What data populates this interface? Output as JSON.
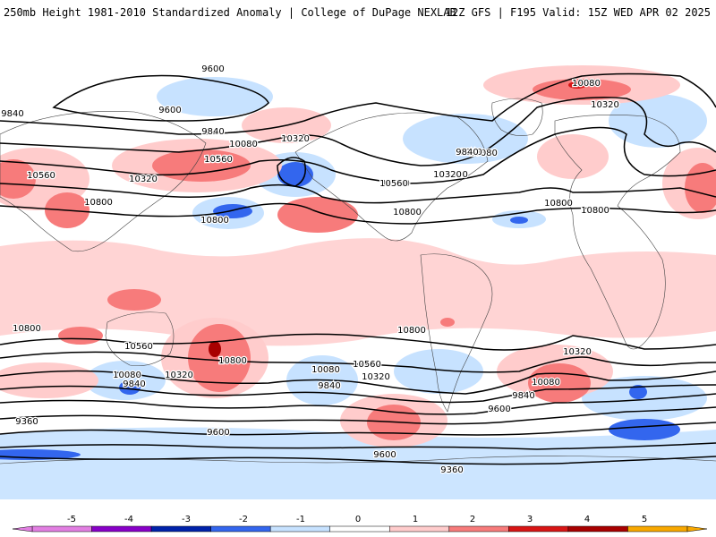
{
  "header": {
    "title_left": "250mb Height 1981-2010 Standardized Anomaly | College of DuPage NEXLAB",
    "title_right": "12Z GFS | F195 Valid: 15Z WED APR 02 2025"
  },
  "colorbar": {
    "ticks": [
      "-5",
      "-4",
      "-3",
      "-2",
      "-1",
      "0",
      "1",
      "2",
      "3",
      "4",
      "5"
    ],
    "colors": [
      "#e27fe2",
      "#8800c8",
      "#0022aa",
      "#3366ee",
      "#c7e2ff",
      "#ffffff",
      "#ffcccc",
      "#f77b7b",
      "#d81515",
      "#a80000",
      "#f8a800"
    ]
  },
  "contour_labels": [
    {
      "text": "9600"
    },
    {
      "text": "9600"
    },
    {
      "text": "9840"
    },
    {
      "text": "9840"
    },
    {
      "text": "10080"
    },
    {
      "text": "10320"
    },
    {
      "text": "10560"
    },
    {
      "text": "10560"
    },
    {
      "text": "10320"
    },
    {
      "text": "10800"
    },
    {
      "text": "10800"
    },
    {
      "text": "10080"
    },
    {
      "text": "10320"
    },
    {
      "text": "9840"
    },
    {
      "text": "10560"
    },
    {
      "text": "10320"
    },
    {
      "text": "10800"
    },
    {
      "text": "9840"
    },
    {
      "text": "10080"
    },
    {
      "text": "10320"
    },
    {
      "text": "10560"
    },
    {
      "text": "10800"
    },
    {
      "text": "10800"
    },
    {
      "text": "10560"
    },
    {
      "text": "10800"
    },
    {
      "text": "10080"
    },
    {
      "text": "10320"
    },
    {
      "text": "9840"
    },
    {
      "text": "10080"
    },
    {
      "text": "9840"
    },
    {
      "text": "10320"
    },
    {
      "text": "10560"
    },
    {
      "text": "10800"
    },
    {
      "text": "10800"
    },
    {
      "text": "10560"
    },
    {
      "text": "10320"
    },
    {
      "text": "10080"
    },
    {
      "text": "9840"
    },
    {
      "text": "9600"
    },
    {
      "text": "9360"
    },
    {
      "text": "9600"
    },
    {
      "text": "9600"
    },
    {
      "text": "9360"
    }
  ]
}
